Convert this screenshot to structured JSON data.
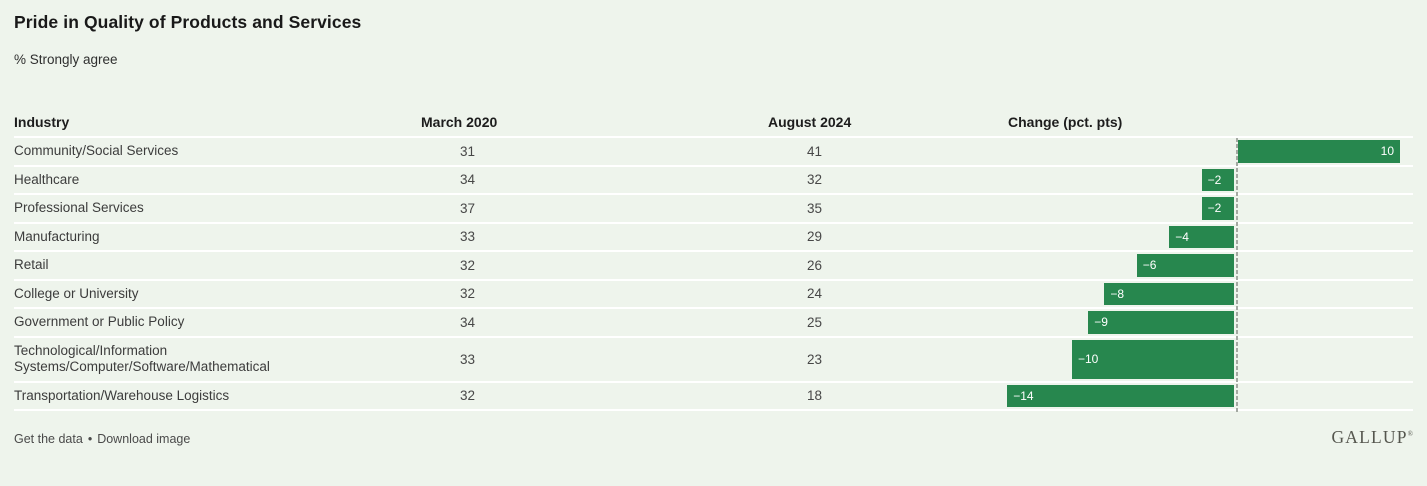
{
  "title": "Pride in Quality of Products and Services",
  "subtitle": "% Strongly agree",
  "columns": {
    "industry": "Industry",
    "march": "March 2020",
    "august": "August 2024",
    "change": "Change (pct. pts)"
  },
  "rows": [
    {
      "industry": "Community/Social Services",
      "march2020": "31",
      "august2024": "41",
      "change": 10,
      "change_label": "10"
    },
    {
      "industry": "Healthcare",
      "march2020": "34",
      "august2024": "32",
      "change": -2,
      "change_label": "−2"
    },
    {
      "industry": "Professional Services",
      "march2020": "37",
      "august2024": "35",
      "change": -2,
      "change_label": "−2"
    },
    {
      "industry": "Manufacturing",
      "march2020": "33",
      "august2024": "29",
      "change": -4,
      "change_label": "−4"
    },
    {
      "industry": "Retail",
      "march2020": "32",
      "august2024": "26",
      "change": -6,
      "change_label": "−6"
    },
    {
      "industry": "College or University",
      "march2020": "32",
      "august2024": "24",
      "change": -8,
      "change_label": "−8"
    },
    {
      "industry": "Government or Public Policy",
      "march2020": "34",
      "august2024": "25",
      "change": -9,
      "change_label": "−9"
    },
    {
      "industry": "Technological/Information Systems/Computer/Software/Mathematical",
      "march2020": "33",
      "august2024": "23",
      "change": -10,
      "change_label": "−10"
    },
    {
      "industry": "Transportation/Warehouse Logistics",
      "march2020": "32",
      "august2024": "18",
      "change": -14,
      "change_label": "−14"
    }
  ],
  "chart_data": {
    "type": "bar",
    "orientation": "horizontal",
    "title": "Pride in Quality of Products and Services",
    "subtitle": "% Strongly agree",
    "categories": [
      "Community/Social Services",
      "Healthcare",
      "Professional Services",
      "Manufacturing",
      "Retail",
      "College or University",
      "Government or Public Policy",
      "Technological/Information Systems/Computer/Software/Mathematical",
      "Transportation/Warehouse Logistics"
    ],
    "series": [
      {
        "name": "March 2020",
        "values": [
          31,
          34,
          37,
          33,
          32,
          32,
          34,
          33,
          32
        ]
      },
      {
        "name": "August 2024",
        "values": [
          41,
          32,
          35,
          29,
          26,
          24,
          25,
          23,
          18
        ]
      },
      {
        "name": "Change (pct. pts)",
        "values": [
          10,
          -2,
          -2,
          -4,
          -6,
          -8,
          -9,
          -10,
          -14
        ]
      }
    ],
    "bar_series": "Change (pct. pts)",
    "xlim": [
      -15,
      11
    ],
    "grid": false,
    "legend": "none",
    "zero_axis_line": true
  },
  "colors": {
    "background": "#eef4ec",
    "row_separator": "#ffffff",
    "bar_green": "#27874e",
    "bar_label": "#ffffff",
    "axis_line": "#a4a9a2",
    "title_text": "#191919",
    "body_text": "#3c3c3c"
  },
  "footer": {
    "get_data_label": "Get the data",
    "separator": "•",
    "download_label": "Download image",
    "brand": "GALLUP",
    "trademark": "®"
  }
}
